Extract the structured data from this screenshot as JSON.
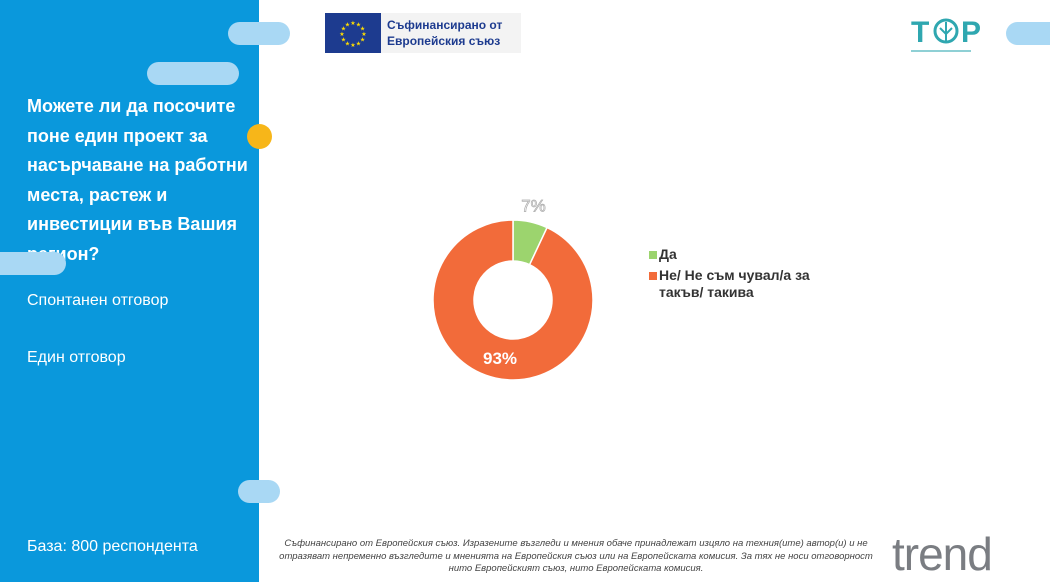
{
  "sidebar": {
    "question": "Можете ли да посочите поне един проект за насърчаване на работни места, растеж и инвестиции във Вашия регион?",
    "note_spontaneous": "Спонтанен отговор",
    "note_single": "Един отговор",
    "base": "База: 800 респондента"
  },
  "header": {
    "eu_line1": "Съфинансирано от",
    "eu_line2": "Европейския съюз",
    "top_logo": "T P"
  },
  "footer": {
    "disclaimer": "Съфинансирано от Европейския съюз. Изразените възгледи и мнения обаче принадлежат изцяло на техния(ите) автор(и) и не отразяват непременно възгледите и мненията на Европейския съюз или на Европейската комисия. За тях не носи отговорност нито Европейският съюз, нито Европейската комисия.",
    "brand_logo": "trend"
  },
  "colors": {
    "sidebar": "#0a98dc",
    "yes": "#9cd46e",
    "no": "#f26b3a"
  },
  "chart_data": {
    "type": "pie",
    "donut": true,
    "categories": [
      "Да",
      "Не/ Не съм чувал/а за такъв/ такива"
    ],
    "values": [
      7,
      93
    ],
    "data_labels": [
      "7%",
      "93%"
    ],
    "legend_position": "right"
  }
}
